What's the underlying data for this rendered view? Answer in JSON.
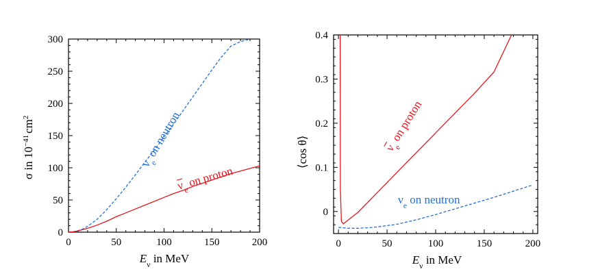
{
  "chart_data": [
    {
      "type": "line",
      "xlabel": "E",
      "xlabel_sub": "ν",
      "xlabel_tail": " in MeV",
      "ylabel": "σ in 10",
      "ylabel_exp": "−41",
      "ylabel_tail": "cm",
      "ylabel_exp2": "2",
      "xlim": [
        0,
        200
      ],
      "ylim": [
        0,
        300
      ],
      "xticks": [
        "0",
        "50",
        "100",
        "150",
        "200"
      ],
      "yticks": [
        "0",
        "50",
        "100",
        "150",
        "200",
        "250",
        "300"
      ],
      "grid": false,
      "series": [
        {
          "name": "νe on neutron",
          "name_main": "ν",
          "name_sub": "e",
          "name_tail": " on neutron",
          "color": "#1f6fd6",
          "dash": true,
          "x": [
            0,
            5,
            10,
            15,
            20,
            30,
            40,
            50,
            60,
            70,
            80,
            90,
            100,
            110,
            120,
            130,
            140,
            150,
            160,
            170,
            180,
            190
          ],
          "y": [
            0,
            0.6,
            2.3,
            5,
            9,
            20,
            35,
            52,
            70,
            89,
            109,
            128,
            148,
            168,
            189,
            210,
            231,
            252,
            272,
            289,
            296,
            300
          ]
        },
        {
          "name": "ν̄e on proton",
          "name_main": "ν",
          "name_sub": "e",
          "name_tail": " on proton",
          "name_bar": true,
          "color": "#e8141c",
          "dash": false,
          "x": [
            0,
            5,
            10,
            20,
            30,
            40,
            50,
            60,
            70,
            80,
            90,
            100,
            110,
            120,
            130,
            140,
            150,
            160,
            170,
            180,
            190,
            200
          ],
          "y": [
            0,
            0.6,
            2,
            6,
            11,
            17,
            24,
            30,
            36,
            42,
            48,
            54,
            60,
            65,
            71,
            76,
            81,
            86,
            91,
            95,
            99,
            103
          ]
        }
      ]
    },
    {
      "type": "line",
      "xlabel": "E",
      "xlabel_sub": "ν",
      "xlabel_tail": " in MeV",
      "ylabel": "⟨cos θ⟩",
      "xlim": [
        -5,
        205
      ],
      "ylim": [
        -0.05,
        0.4
      ],
      "xticks": [
        "0",
        "50",
        "100",
        "150",
        "200"
      ],
      "yticks": [
        "0",
        "0.1",
        "0.2",
        "0.3",
        "0.4"
      ],
      "grid": false,
      "series": [
        {
          "name": "ν̄e on proton",
          "name_main": "ν",
          "name_sub": "e",
          "name_tail": " on proton",
          "name_bar": true,
          "color": "#e8141c",
          "dash": false,
          "x": [
            1.8,
            2.0,
            3.0,
            5,
            20,
            40,
            60,
            80,
            100,
            120,
            140,
            160,
            178
          ],
          "y": [
            0.4,
            0.05,
            -0.022,
            -0.028,
            -0.002,
            0.043,
            0.088,
            0.133,
            0.178,
            0.223,
            0.268,
            0.316,
            0.4
          ]
        },
        {
          "name": "νe on neutron",
          "name_main": "ν",
          "name_sub": "e",
          "name_tail": " on neutron",
          "color": "#1f6fd6",
          "dash": true,
          "x": [
            0,
            10,
            20,
            30,
            40,
            60,
            80,
            100,
            120,
            140,
            160,
            180,
            200
          ],
          "y": [
            -0.036,
            -0.038,
            -0.038,
            -0.037,
            -0.035,
            -0.029,
            -0.019,
            -0.007,
            0.006,
            0.019,
            0.032,
            0.046,
            0.06
          ]
        }
      ]
    }
  ]
}
